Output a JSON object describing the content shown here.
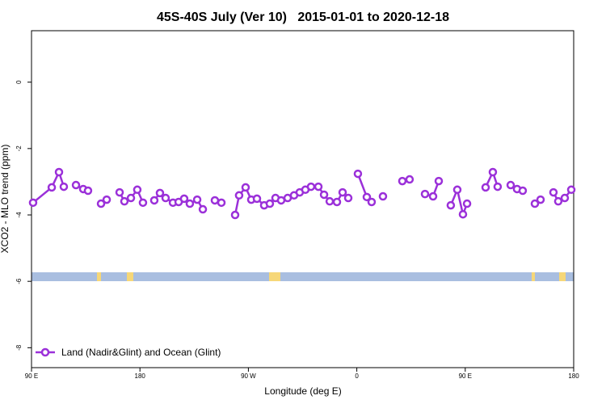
{
  "chart_data": {
    "type": "line",
    "title": "45S-40S July (Ver 10)   2015-01-01 to 2020-12-18",
    "x_label": "Longitude (deg E)",
    "y_label": "XCO2 - MLO trend (ppm)",
    "xlim": [
      90,
      540
    ],
    "ylim": [
      -8.6,
      1.55
    ],
    "xticks": [
      {
        "value": 90,
        "label": "90 E"
      },
      180,
      {
        "value": 270,
        "label": "90 W"
      },
      {
        "value": 360,
        "label": "0"
      },
      {
        "value": 450,
        "label": "90 E"
      },
      {
        "value": 540,
        "label": "180"
      }
    ],
    "yticks": [
      0,
      -2,
      -4,
      -6,
      -8
    ],
    "legend": "bottom-left",
    "x": [
      91.3,
      106.8,
      112.8,
      116.8,
      122,
      126.9,
      132.9,
      136.9,
      142,
      147.7,
      152.4,
      158,
      163.1,
      167.1,
      172.5,
      177.8,
      182.5,
      187,
      191.9,
      196.6,
      201.3,
      207.4,
      212.1,
      216.7,
      221.4,
      227.5,
      232.2,
      237,
      242.2,
      247.6,
      253,
      259.0,
      262.3,
      267.7,
      272.4,
      277.1,
      283.1,
      287.8,
      292.5,
      297.2,
      302.6,
      307.9,
      312.6,
      317.3,
      322.0,
      328.1,
      332.8,
      337.5,
      343.5,
      348.2,
      352.9,
      357,
      360.9,
      368.3,
      372.3,
      377,
      381.7,
      390,
      397.8,
      403.8,
      410,
      416.6,
      423.3,
      428.0,
      433,
      438.0,
      443.4,
      448.1,
      451.5,
      459,
      466.9,
      472.9,
      476.9,
      482,
      487.7,
      493.0,
      497.7,
      503,
      507.8,
      512.5,
      518,
      523.2,
      527.2,
      532.6,
      538.0
    ],
    "series": [
      {
        "name": "Land (Nadir&Glint) and Ocean (Glint)",
        "color": "#9b30d9",
        "values": [
          -3.63,
          -3.17,
          -2.71,
          -3.15,
          null,
          -3.1,
          -3.22,
          -3.27,
          null,
          -3.66,
          -3.54,
          null,
          -3.32,
          -3.59,
          -3.49,
          -3.24,
          -3.63,
          null,
          -3.56,
          -3.34,
          -3.49,
          -3.63,
          -3.61,
          -3.51,
          -3.66,
          -3.54,
          -3.83,
          null,
          -3.56,
          -3.63,
          null,
          -4.0,
          -3.41,
          -3.17,
          -3.54,
          -3.51,
          -3.71,
          -3.66,
          -3.49,
          -3.56,
          -3.49,
          -3.41,
          -3.32,
          -3.24,
          -3.15,
          -3.15,
          -3.39,
          -3.59,
          -3.61,
          -3.32,
          -3.49,
          null,
          -2.76,
          -3.46,
          -3.61,
          null,
          -3.44,
          null,
          -2.98,
          -2.93,
          null,
          -3.37,
          -3.44,
          -2.98,
          null,
          -3.71,
          -3.24,
          -3.98,
          -3.66,
          null,
          -3.17,
          -2.71,
          -3.15,
          null,
          -3.1,
          -3.22,
          -3.27,
          null,
          -3.66,
          -3.54,
          null,
          -3.32,
          -3.59,
          -3.49,
          -3.24
        ]
      }
    ]
  }
}
